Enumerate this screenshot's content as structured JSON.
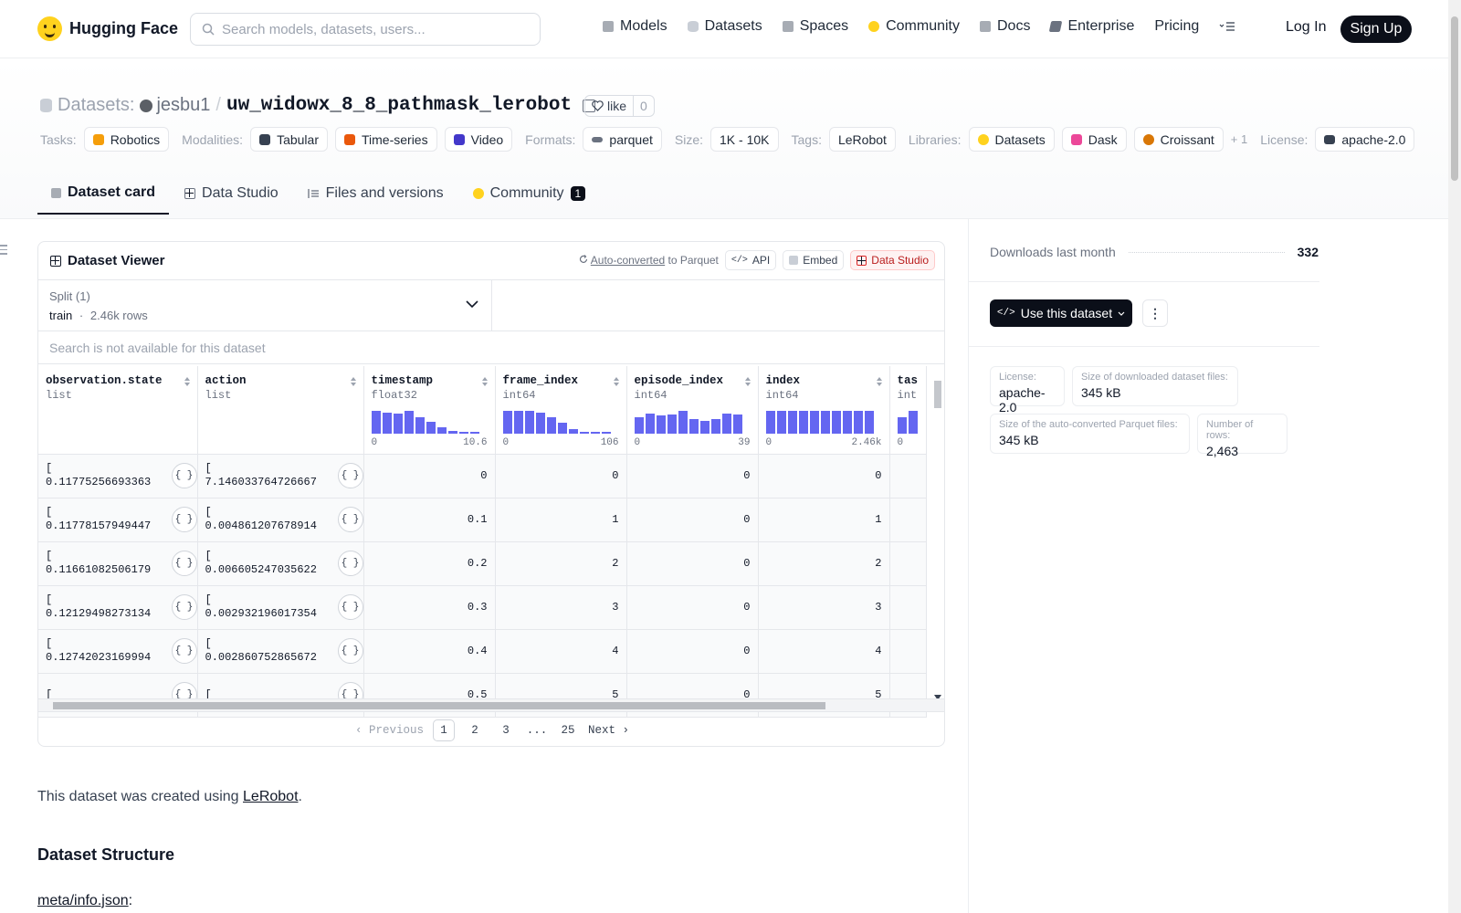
{
  "nav": {
    "brand": "Hugging Face",
    "search_placeholder": "Search models, datasets, users...",
    "links": [
      {
        "label": "Models",
        "icon": "models-icon",
        "color": "#a7acb4"
      },
      {
        "label": "Datasets",
        "icon": "datasets-icon",
        "color": "#c9ced6"
      },
      {
        "label": "Spaces",
        "icon": "spaces-icon",
        "color": "#a7acb4"
      },
      {
        "label": "Community",
        "icon": "community-icon",
        "color": "#ffd21e"
      },
      {
        "label": "Docs",
        "icon": "docs-icon",
        "color": "#a7acb4"
      },
      {
        "label": "Enterprise",
        "icon": "enterprise-icon",
        "color": "#6b7280"
      },
      {
        "label": "Pricing"
      }
    ],
    "login": "Log In",
    "signup": "Sign Up"
  },
  "header": {
    "section": "Datasets:",
    "user": "jesbu1",
    "sep": "/",
    "repo": "uw_widowx_8_8_pathmask_lerobot",
    "like_label": "like",
    "like_count": "0",
    "tags": {
      "tasks_label": "Tasks:",
      "tasks": [
        "Robotics"
      ],
      "modalities_label": "Modalities:",
      "modalities": [
        "Tabular",
        "Time-series",
        "Video"
      ],
      "formats_label": "Formats:",
      "formats": [
        "parquet"
      ],
      "size_label": "Size:",
      "size": "1K - 10K",
      "tags_label": "Tags:",
      "tags": [
        "LeRobot"
      ],
      "libraries_label": "Libraries:",
      "libraries": [
        "Datasets",
        "Dask",
        "Croissant"
      ],
      "libraries_more": "+ 1",
      "license_label": "License:",
      "license": "apache-2.0"
    },
    "tabs": [
      {
        "label": "Dataset card",
        "active": true
      },
      {
        "label": "Data Studio"
      },
      {
        "label": "Files and versions"
      },
      {
        "label": "Community",
        "badge": "1"
      }
    ]
  },
  "viewer": {
    "title": "Dataset Viewer",
    "auto_converted": "Auto-converted",
    "to_parquet": "to Parquet",
    "api": "API",
    "embed": "Embed",
    "data_studio": "Data Studio",
    "split_label": "Split (1)",
    "split_name": "train",
    "split_dot": "·",
    "split_rows": "2.46k rows",
    "search_na": "Search is not available for this dataset",
    "columns": [
      {
        "name": "observation.state",
        "type": "list"
      },
      {
        "name": "action",
        "type": "list"
      },
      {
        "name": "timestamp",
        "type": "float32",
        "hist": [
          0.95,
          0.9,
          0.85,
          0.95,
          0.7,
          0.5,
          0.25,
          0.1,
          0.05,
          0.05
        ],
        "min": "0",
        "max": "10.6"
      },
      {
        "name": "frame_index",
        "type": "int64",
        "hist": [
          0.95,
          0.95,
          0.95,
          0.9,
          0.7,
          0.45,
          0.2,
          0.05,
          0.05,
          0.05
        ],
        "min": "0",
        "max": "106"
      },
      {
        "name": "episode_index",
        "type": "int64",
        "hist": [
          0.7,
          0.85,
          0.75,
          0.8,
          0.95,
          0.6,
          0.55,
          0.6,
          0.85,
          0.8
        ],
        "min": "0",
        "max": "39"
      },
      {
        "name": "index",
        "type": "int64",
        "hist": [
          0.95,
          0.95,
          0.95,
          0.95,
          0.95,
          0.95,
          0.95,
          0.95,
          0.95,
          0.95
        ],
        "min": "0",
        "max": "2.46k"
      },
      {
        "name": "tas",
        "type": "int",
        "hist": [
          0.7,
          0.95
        ],
        "min": "0",
        "max": ""
      }
    ],
    "rows": [
      {
        "state": "0.11775256693363",
        "action": "7.146033764726667",
        "timestamp": "0",
        "frame_index": "0",
        "episode_index": "0",
        "index": "0"
      },
      {
        "state": "0.11778157949447",
        "action": "0.004861207678914",
        "timestamp": "0.1",
        "frame_index": "1",
        "episode_index": "0",
        "index": "1"
      },
      {
        "state": "0.11661082506179",
        "action": "0.006605247035622",
        "timestamp": "0.2",
        "frame_index": "2",
        "episode_index": "0",
        "index": "2"
      },
      {
        "state": "0.12129498273134",
        "action": "0.002932196017354",
        "timestamp": "0.3",
        "frame_index": "3",
        "episode_index": "0",
        "index": "3"
      },
      {
        "state": "0.12742023169994",
        "action": "0.002860752865672",
        "timestamp": "0.4",
        "frame_index": "4",
        "episode_index": "0",
        "index": "4"
      },
      {
        "state": "",
        "action": "",
        "timestamp": "0.5",
        "frame_index": "5",
        "episode_index": "0",
        "index": "5"
      }
    ],
    "bracket": "[",
    "json_btn": "{ }",
    "pager": {
      "prev": "Previous",
      "pages": [
        "1",
        "2",
        "3",
        "...",
        "25"
      ],
      "current": "1",
      "next": "Next"
    }
  },
  "sidebar": {
    "downloads_label": "Downloads last month",
    "downloads": "332",
    "use_button": "Use this dataset",
    "more": "⋮",
    "stats": [
      {
        "k": "License:",
        "v": "apache-2.0"
      },
      {
        "k": "Size of downloaded dataset files:",
        "v": "345 kB"
      },
      {
        "k": "Size of the auto-converted Parquet files:",
        "v": "345 kB"
      },
      {
        "k": "Number of rows:",
        "v": "2,463"
      }
    ]
  },
  "card": {
    "intro_before": "This dataset was created using ",
    "intro_link": "LeRobot",
    "intro_after": ".",
    "structure_heading": "Dataset Structure",
    "meta_link": "meta/info.json",
    "meta_colon": ":"
  },
  "colors": {
    "accent": "#6466f1",
    "dark": "#0b0f19",
    "brand": "#ffd21e"
  }
}
